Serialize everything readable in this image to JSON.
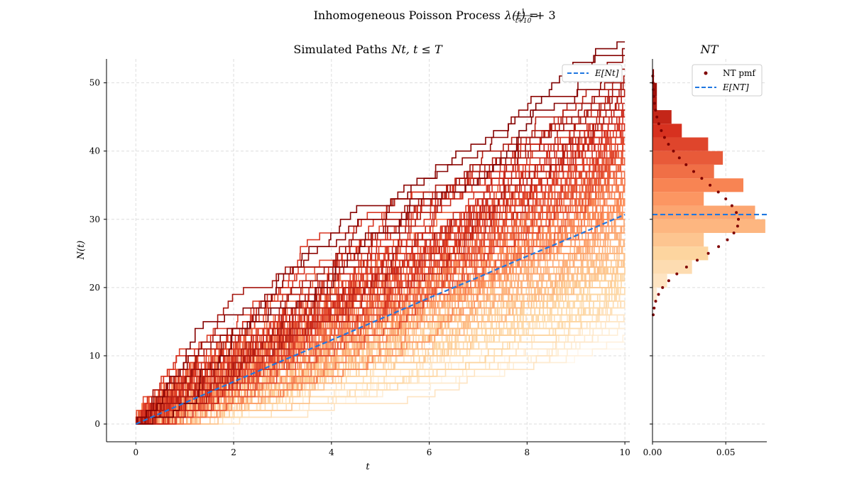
{
  "figure": {
    "suptitle": "Inhomogeneous Poisson Process λ(t) = 1/(t+10) + 3",
    "suptitle_prefix": "Inhomogeneous Poisson Process",
    "suptitle_formula_lhs": "λ(t) =",
    "suptitle_frac_num": "1",
    "suptitle_frac_den": "t+10",
    "suptitle_formula_rhs": "+ 3"
  },
  "chart_data": [
    {
      "type": "line",
      "title": "Simulated Paths N_t, t ≤ T",
      "title_prefix": "Simulated Paths",
      "title_formula": "Nt, t ≤ T",
      "xlabel": "t",
      "ylabel": "N(t)",
      "xlim": [
        -0.6,
        10.1
      ],
      "ylim": [
        -2.6,
        53.5
      ],
      "xticks": [
        0,
        2,
        4,
        6,
        8,
        10
      ],
      "yticks": [
        0,
        10,
        20,
        30,
        40,
        50
      ],
      "grid": true,
      "legend_position": "top-right",
      "legend_entries": [
        "E[N_t]"
      ],
      "legend_label": "E[Nt]",
      "simulated_paths": {
        "count": 300,
        "t_range": [
          0,
          10
        ],
        "rate": "1/(t+10) + 3",
        "colormap": "OrRd",
        "colormap_stops": [
          "#fff7ec",
          "#fdd49e",
          "#fc8d59",
          "#d7301f",
          "#7f0000"
        ],
        "color_by": "final count N_T"
      },
      "series": [
        {
          "name": "E[N_t]",
          "style": "dashed",
          "color": "#1f77e0",
          "x": [
            0,
            1,
            2,
            3,
            4,
            5,
            6,
            7,
            8,
            9,
            10
          ],
          "values": [
            0,
            3.1,
            6.2,
            9.3,
            12.3,
            15.4,
            18.5,
            21.5,
            24.6,
            27.6,
            30.7
          ]
        }
      ]
    },
    {
      "type": "bar",
      "orientation": "horizontal",
      "title": "N_T",
      "title_formula": "NT",
      "xlim": [
        0,
        0.078
      ],
      "ylim": [
        -2.6,
        53.5
      ],
      "xticks": [
        0.0,
        0.05
      ],
      "xtick_labels": [
        "0.00",
        "0.05"
      ],
      "grid": true,
      "legend_position": "top-right",
      "legend_entries": [
        "N_T pmf",
        "E[N_T]"
      ],
      "legend_pmf_label": "NT pmf",
      "legend_mean_label": "E[NT]",
      "histogram": {
        "name": "N_T histogram",
        "bin_edges": [
          18,
          20,
          22,
          24,
          26,
          28,
          30,
          32,
          34,
          36,
          38,
          40,
          42,
          44,
          46,
          48,
          50,
          52
        ],
        "density": [
          0.003,
          0.01,
          0.027,
          0.038,
          0.035,
          0.077,
          0.07,
          0.035,
          0.062,
          0.042,
          0.048,
          0.038,
          0.02,
          0.013,
          0.003,
          0.003,
          0.001
        ]
      },
      "pmf": {
        "name": "N_T pmf",
        "color": "#7f0000",
        "k": [
          16,
          17,
          18,
          19,
          20,
          21,
          22,
          23,
          24,
          25,
          26,
          27,
          28,
          29,
          30,
          31,
          32,
          33,
          34,
          35,
          36,
          37,
          38,
          39,
          40,
          41,
          42,
          43,
          44,
          45,
          46,
          47,
          48,
          49,
          50,
          51
        ],
        "values": [
          0.0005,
          0.0011,
          0.0022,
          0.0041,
          0.0069,
          0.0111,
          0.0166,
          0.0232,
          0.0305,
          0.0381,
          0.0451,
          0.0511,
          0.0555,
          0.0581,
          0.0586,
          0.0572,
          0.0542,
          0.05,
          0.0449,
          0.0393,
          0.0336,
          0.0281,
          0.0229,
          0.0183,
          0.0143,
          0.0109,
          0.0082,
          0.006,
          0.0043,
          0.003,
          0.0021,
          0.0014,
          0.0009,
          0.0006,
          0.0004,
          0.0002
        ]
      },
      "mean": {
        "name": "E[N_T]",
        "value": 30.7,
        "color": "#1f77e0"
      }
    }
  ]
}
